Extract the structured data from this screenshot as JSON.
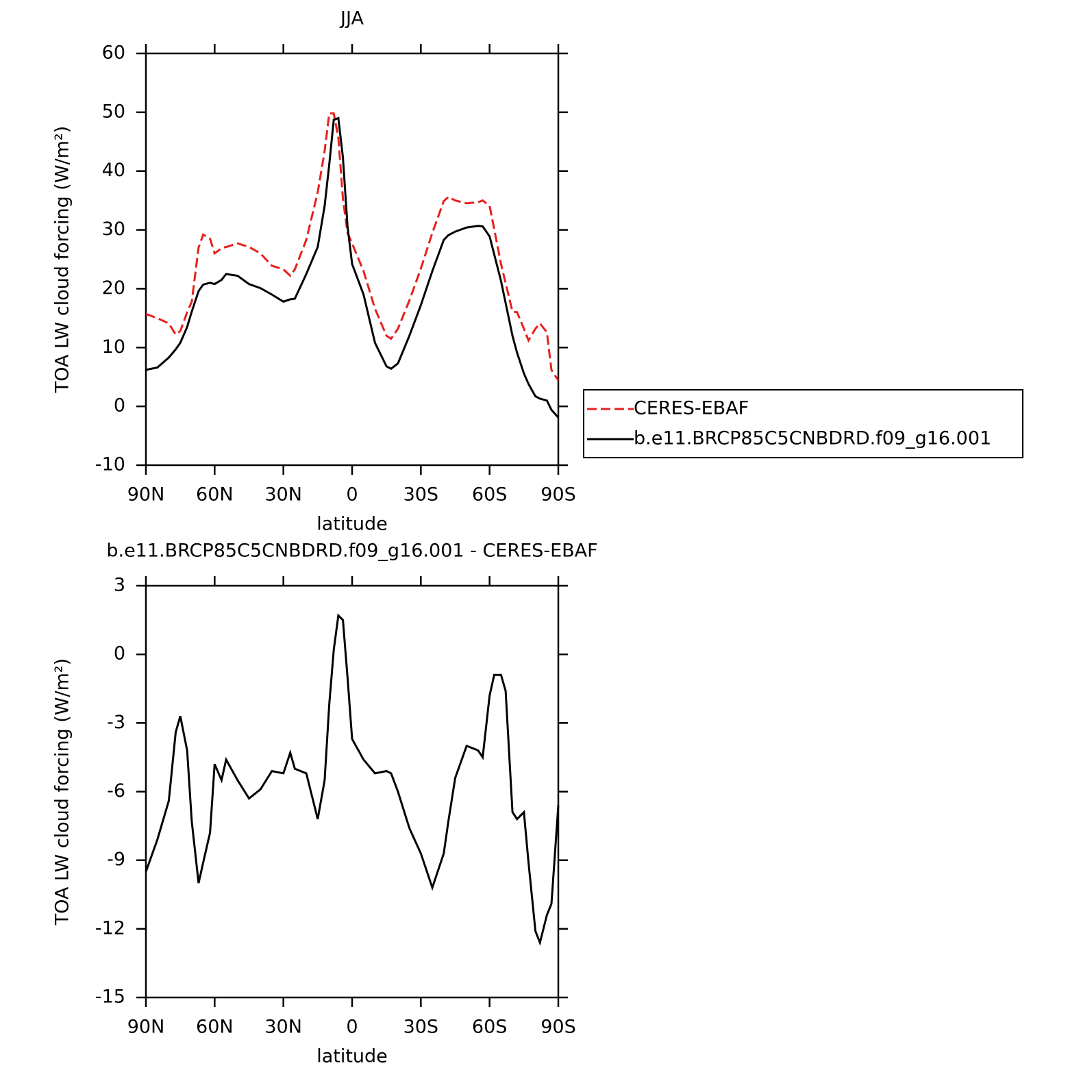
{
  "chart_data": [
    {
      "type": "line",
      "title": "JJA",
      "xlabel": "latitude",
      "ylabel": "TOA LW cloud forcing (W/m²)",
      "x": [
        90,
        85,
        80,
        77,
        75,
        72,
        70,
        67,
        65,
        62,
        60,
        57,
        55,
        50,
        45,
        40,
        35,
        30,
        27,
        25,
        20,
        15,
        12,
        10,
        8,
        6,
        4,
        2,
        0,
        -5,
        -10,
        -15,
        -17,
        -20,
        -25,
        -30,
        -35,
        -40,
        -42,
        -45,
        -50,
        -55,
        -57,
        -60,
        -65,
        -70,
        -72,
        -75,
        -77,
        -80,
        -82,
        -85,
        -87,
        -90
      ],
      "series": [
        {
          "name": "CERES-EBAF",
          "color": "#e8201c",
          "dash": true,
          "values": [
            15.7,
            15.0,
            14.1,
            12.2,
            12.8,
            16,
            17.8,
            27,
            29.2,
            28.5,
            26,
            26.9,
            27.1,
            27.7,
            27.1,
            26,
            23.9,
            23.3,
            22.2,
            23.3,
            28.3,
            36.4,
            43.4,
            49.8,
            49.8,
            45.7,
            35.3,
            29.5,
            27.7,
            23,
            16.6,
            12,
            11.5,
            13.2,
            18,
            23.4,
            29.5,
            34.9,
            35.6,
            35,
            34.5,
            34.7,
            35,
            34.1,
            24.2,
            16.1,
            16,
            13.2,
            11.2,
            13.2,
            14.1,
            12.6,
            6.2,
            4.4
          ]
        },
        {
          "name": "b.e11.BRCP85C5CNBDRD.f09_g16.001",
          "color": "#000000",
          "dash": false,
          "values": [
            6.2,
            6.6,
            8.3,
            9.7,
            10.8,
            13.5,
            16.1,
            19.6,
            20.7,
            21,
            20.8,
            21.5,
            22.5,
            22.2,
            20.8,
            20.1,
            19,
            17.8,
            18.2,
            18.3,
            22.5,
            27.1,
            34.1,
            41.1,
            48.7,
            49,
            42.3,
            30.6,
            24.2,
            19,
            10.8,
            6.8,
            6.4,
            7.3,
            12,
            17.2,
            23,
            28.3,
            29.1,
            29.7,
            30.4,
            30.7,
            30.6,
            28.9,
            21.3,
            12,
            9.1,
            5.6,
            3.8,
            1.7,
            1.3,
            1,
            -0.6,
            -1.9
          ]
        }
      ],
      "xlim": [
        90,
        -90
      ],
      "xticks": [
        {
          "value": 90,
          "label": "90N"
        },
        {
          "value": 60,
          "label": "60N"
        },
        {
          "value": 30,
          "label": "30N"
        },
        0,
        {
          "value": -30,
          "label": "30S"
        },
        {
          "value": -60,
          "label": "60S"
        },
        {
          "value": -90,
          "label": "90S"
        }
      ],
      "ylim": [
        -10,
        60
      ],
      "yticks": [
        -10,
        0,
        10,
        20,
        30,
        40,
        50,
        60
      ],
      "legend": "right"
    },
    {
      "type": "line",
      "title": "b.e11.BRCP85C5CNBDRD.f09_g16.001 - CERES-EBAF",
      "xlabel": "latitude",
      "ylabel": "TOA LW cloud forcing (W/m²)",
      "x": [
        90,
        85,
        80,
        77,
        75,
        72,
        70,
        67,
        65,
        62,
        60,
        57,
        55,
        50,
        45,
        40,
        35,
        30,
        27,
        25,
        20,
        15,
        12,
        10,
        8,
        6,
        4,
        2,
        0,
        -5,
        -10,
        -15,
        -17,
        -20,
        -25,
        -30,
        -35,
        -40,
        -42,
        -45,
        -50,
        -55,
        -57,
        -60,
        -62,
        -65,
        -67,
        -70,
        -72,
        -75,
        -77,
        -80,
        -82,
        -85,
        -87,
        -90
      ],
      "series": [
        {
          "color": "#000000",
          "values": [
            -9.5,
            -8.1,
            -6.4,
            -3.4,
            -2.7,
            -4.2,
            -7.3,
            -10,
            -9.1,
            -7.8,
            -4.8,
            -5.5,
            -4.6,
            -5.5,
            -6.3,
            -5.9,
            -5.1,
            -5.2,
            -4.3,
            -5,
            -5.2,
            -7.2,
            -5.5,
            -2.2,
            0.2,
            1.7,
            1.5,
            -1,
            -3.7,
            -4.6,
            -5.2,
            -5.1,
            -5.2,
            -6,
            -7.6,
            -8.7,
            -10.2,
            -8.7,
            -7.3,
            -5.4,
            -4,
            -4.2,
            -4.5,
            -1.8,
            -0.9,
            -0.9,
            -1.6,
            -6.9,
            -7.2,
            -6.9,
            -9.1,
            -12.1,
            -12.6,
            -11.4,
            -10.9,
            -6.6
          ]
        }
      ],
      "xlim": [
        90,
        -90
      ],
      "xticks": [
        {
          "value": 90,
          "label": "90N"
        },
        {
          "value": 60,
          "label": "60N"
        },
        {
          "value": 30,
          "label": "30N"
        },
        0,
        {
          "value": -30,
          "label": "30S"
        },
        {
          "value": -60,
          "label": "60S"
        },
        {
          "value": -90,
          "label": "90S"
        }
      ],
      "ylim": [
        -15,
        3
      ],
      "yticks": [
        -15,
        -12,
        -9,
        -6,
        -3,
        0,
        3
      ]
    }
  ]
}
